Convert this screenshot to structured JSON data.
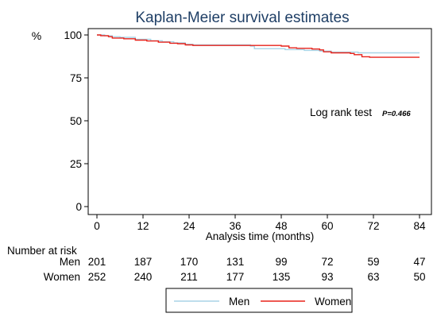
{
  "chart_data": {
    "type": "line",
    "title": "Kaplan-Meier survival estimates",
    "ylabel": "%",
    "xlabel": "Analysis time (months)",
    "xlim": [
      0,
      84
    ],
    "ylim": [
      0,
      100
    ],
    "x_ticks": [
      0,
      12,
      24,
      36,
      48,
      60,
      72,
      84
    ],
    "y_ticks": [
      0,
      25,
      50,
      75,
      100
    ],
    "grid": false,
    "annotation": {
      "label": "Log rank test",
      "pvalue": "P=0.466"
    },
    "series": [
      {
        "name": "Men",
        "color": "#a9d4e6",
        "points": [
          [
            0,
            100
          ],
          [
            2,
            99.5
          ],
          [
            4,
            99
          ],
          [
            6,
            98.6
          ],
          [
            10,
            97.5
          ],
          [
            14,
            96.6
          ],
          [
            17,
            96
          ],
          [
            20,
            95.4
          ],
          [
            23,
            94.6
          ],
          [
            25,
            94.2
          ],
          [
            30,
            94.2
          ],
          [
            38,
            94.2
          ],
          [
            40,
            93.5
          ],
          [
            41,
            92
          ],
          [
            44,
            92
          ],
          [
            49,
            91.5
          ],
          [
            54,
            91
          ],
          [
            58,
            90.6
          ],
          [
            61,
            90
          ],
          [
            66,
            90
          ],
          [
            68,
            89.6
          ],
          [
            70,
            89.6
          ],
          [
            84,
            89.6
          ]
        ]
      },
      {
        "name": "Women",
        "color": "#e8221a",
        "points": [
          [
            0,
            100
          ],
          [
            1,
            99.6
          ],
          [
            3,
            99
          ],
          [
            4,
            98.2
          ],
          [
            7,
            97.8
          ],
          [
            10,
            97
          ],
          [
            13,
            96.5
          ],
          [
            16,
            95.8
          ],
          [
            19,
            95.2
          ],
          [
            21,
            94.9
          ],
          [
            23,
            94.2
          ],
          [
            25,
            93.9
          ],
          [
            33,
            93.9
          ],
          [
            40,
            93.9
          ],
          [
            44,
            93.9
          ],
          [
            48,
            93.5
          ],
          [
            50,
            92.5
          ],
          [
            52,
            92.2
          ],
          [
            56,
            91.8
          ],
          [
            58,
            91.3
          ],
          [
            59,
            90.2
          ],
          [
            61,
            89.6
          ],
          [
            64,
            89.6
          ],
          [
            66,
            89.2
          ],
          [
            67,
            88.5
          ],
          [
            69,
            87.3
          ],
          [
            71,
            87
          ],
          [
            84,
            87
          ]
        ]
      }
    ],
    "risk_table": {
      "title": "Number at risk",
      "rows": [
        {
          "label": "Men",
          "values": [
            201,
            187,
            170,
            131,
            99,
            72,
            59,
            47
          ]
        },
        {
          "label": "Women",
          "values": [
            252,
            240,
            211,
            177,
            135,
            93,
            63,
            50
          ]
        }
      ]
    },
    "legend": {
      "placement": "bottom",
      "entries": [
        "Men",
        "Women"
      ]
    }
  }
}
